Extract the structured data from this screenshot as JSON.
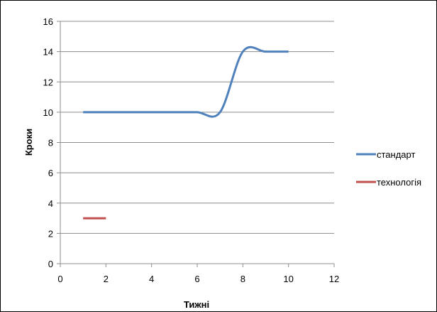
{
  "chart_data": {
    "type": "line",
    "title": "",
    "xlabel": "Тижні",
    "ylabel": "Кроки",
    "xlim": [
      0,
      12
    ],
    "ylim": [
      0,
      16
    ],
    "xticks": [
      0,
      2,
      4,
      6,
      8,
      10,
      12
    ],
    "yticks": [
      0,
      2,
      4,
      6,
      8,
      10,
      12,
      14,
      16
    ],
    "grid": "horizontal",
    "legend_position": "right",
    "series": [
      {
        "name": "стандарт",
        "color": "#4f81bd",
        "x": [
          1,
          2,
          3,
          4,
          5,
          6,
          7,
          8,
          9,
          10
        ],
        "y": [
          10,
          10,
          10,
          10,
          10,
          10,
          10,
          14,
          14,
          14
        ]
      },
      {
        "name": "технологія",
        "color": "#c0504d",
        "x": [
          1,
          2
        ],
        "y": [
          3,
          3
        ]
      }
    ]
  }
}
